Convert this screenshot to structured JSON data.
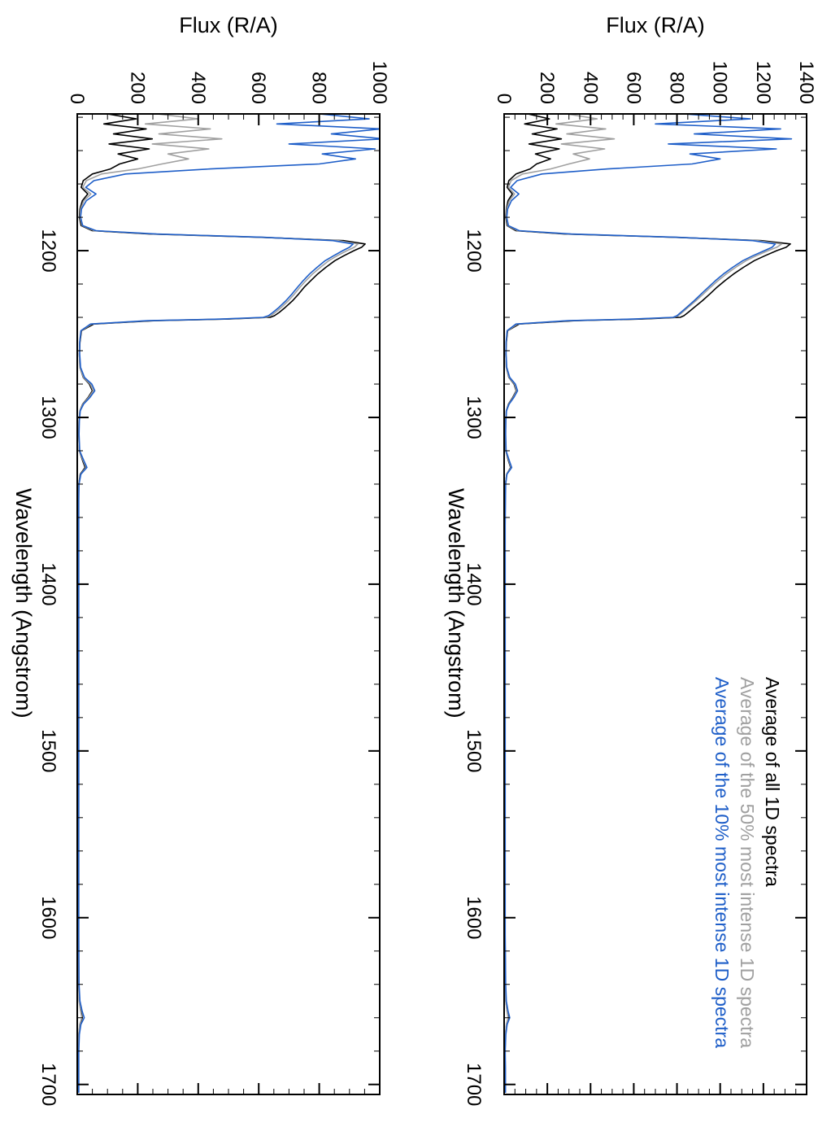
{
  "figure": {
    "flux_axis_title": "Flux (R/A)",
    "wavelength_axis_title": "Wavelength (Angstrom)",
    "background_color": "#ffffff",
    "orientation_note": "figure rotated 90 degrees clockwise on page"
  },
  "legend": {
    "position": "inside-right-panel",
    "items": [
      {
        "label": "Average of all 1D spectra",
        "color": "#000000"
      },
      {
        "label": "Average of the 50% most intense 1D spectra",
        "color": "#a0a0a0"
      },
      {
        "label": "Average of the 10% most intense 1D spectra",
        "color": "#1e5ec8"
      }
    ]
  },
  "chart_data": {
    "type": "line",
    "title": "",
    "xlabel": "Wavelength (Angstrom)",
    "ylabel": "Flux (R/A)",
    "grid": false,
    "wavelength_range": [
      1118,
      1706
    ],
    "wavelength": [
      1118,
      1121,
      1124,
      1127,
      1130,
      1133,
      1136,
      1139,
      1142,
      1145,
      1148,
      1151,
      1154,
      1158,
      1162,
      1166,
      1170,
      1175,
      1180,
      1185,
      1188,
      1190,
      1192,
      1194,
      1196,
      1198,
      1200,
      1203,
      1206,
      1210,
      1214,
      1218,
      1222,
      1226,
      1230,
      1234,
      1237,
      1239,
      1240,
      1241,
      1242,
      1244,
      1248,
      1255,
      1262,
      1270,
      1276,
      1280,
      1284,
      1288,
      1292,
      1296,
      1302,
      1310,
      1320,
      1326,
      1330,
      1334,
      1340,
      1350,
      1365,
      1380,
      1400,
      1430,
      1460,
      1490,
      1520,
      1550,
      1580,
      1610,
      1640,
      1650,
      1656,
      1660,
      1664,
      1670,
      1680,
      1690,
      1700,
      1705
    ],
    "panels": [
      {
        "id": "left-panel",
        "position": "left",
        "flux_range": [
          0,
          1000
        ],
        "flux_ticks": [
          0,
          200,
          400,
          600,
          800,
          1000
        ],
        "flux_minor_step": 50,
        "wavelength_ticks": [
          1200,
          1300,
          1400,
          1500,
          1600,
          1700
        ],
        "legend_visible": false,
        "series": [
          {
            "id": "avg-all",
            "name": "Average of all 1D spectra",
            "color": "#000000",
            "flux": [
              100,
              195,
              88,
              228,
              120,
              248,
              105,
              238,
              135,
              200,
              140,
              110,
              50,
              20,
              13,
              35,
              17,
              9,
              7,
              13,
              50,
              240,
              600,
              880,
              952,
              940,
              915,
              882,
              852,
              822,
              795,
              772,
              750,
              732,
              712,
              688,
              668,
              652,
              638,
              500,
              258,
              55,
              14,
              9,
              7,
              9,
              20,
              40,
              50,
              36,
              18,
              9,
              6,
              5,
              7,
              18,
              26,
              10,
              5,
              4,
              4,
              4,
              4,
              4,
              4,
              4,
              4,
              4,
              4,
              4,
              5,
              7,
              12,
              17,
              9,
              5,
              4,
              4,
              4,
              4
            ]
          },
          {
            "id": "avg-50pct",
            "name": "Average of the 50% most intense 1D spectra",
            "color": "#a0a0a0",
            "flux": [
              265,
              400,
              225,
              440,
              270,
              478,
              248,
              435,
              300,
              368,
              280,
              200,
              80,
              30,
              18,
              45,
              22,
              11,
              9,
              16,
              56,
              252,
              608,
              862,
              928,
              916,
              892,
              860,
              832,
              804,
              778,
              756,
              736,
              718,
              698,
              675,
              655,
              640,
              625,
              485,
              242,
              48,
              13,
              8,
              7,
              9,
              21,
              43,
              53,
              38,
              19,
              9,
              6,
              5,
              7,
              20,
              29,
              11,
              5,
              4,
              4,
              4,
              4,
              4,
              4,
              4,
              4,
              4,
              4,
              4,
              5,
              6,
              11,
              15,
              8,
              5,
              4,
              4,
              4,
              4
            ]
          },
          {
            "id": "avg-10pct",
            "name": "Average of the 10% most intense 1D spectra",
            "color": "#1e5ec8",
            "flux": [
              800,
              965,
              660,
              1005,
              840,
              1015,
              700,
              985,
              810,
              920,
              800,
              440,
              160,
              55,
              28,
              62,
              30,
              14,
              11,
              18,
              62,
              262,
              615,
              845,
              912,
              900,
              878,
              848,
              820,
              793,
              768,
              747,
              728,
              710,
              690,
              667,
              647,
              632,
              615,
              478,
              232,
              44,
              12,
              8,
              8,
              11,
              24,
              48,
              58,
              42,
              21,
              10,
              7,
              6,
              8,
              22,
              32,
              12,
              6,
              5,
              5,
              5,
              5,
              5,
              5,
              5,
              5,
              5,
              5,
              5,
              6,
              9,
              16,
              23,
              12,
              7,
              5,
              5,
              5,
              5
            ]
          }
        ]
      },
      {
        "id": "right-panel",
        "position": "right",
        "flux_range": [
          0,
          1400
        ],
        "flux_ticks": [
          0,
          200,
          400,
          600,
          800,
          1000,
          1200,
          1400
        ],
        "flux_minor_step": 50,
        "wavelength_ticks": [
          1200,
          1300,
          1400,
          1500,
          1600,
          1700
        ],
        "legend_visible": true,
        "series": [
          {
            "id": "avg-all",
            "name": "Average of all 1D spectra",
            "color": "#000000",
            "flux": [
              110,
              210,
              95,
              245,
              130,
              265,
              115,
              255,
              145,
              215,
              150,
              120,
              55,
              22,
              14,
              38,
              18,
              10,
              8,
              14,
              55,
              280,
              780,
              1190,
              1325,
              1305,
              1262,
              1208,
              1158,
              1108,
              1062,
              1022,
              985,
              952,
              918,
              880,
              852,
              832,
              815,
              640,
              330,
              70,
              16,
              10,
              8,
              10,
              22,
              46,
              56,
              40,
              20,
              10,
              7,
              6,
              8,
              20,
              30,
              12,
              6,
              5,
              4,
              4,
              4,
              4,
              4,
              4,
              4,
              4,
              4,
              4,
              6,
              8,
              14,
              20,
              11,
              6,
              4,
              5,
              5,
              5
            ]
          },
          {
            "id": "avg-50pct",
            "name": "Average of the 50% most intense 1D spectra",
            "color": "#a0a0a0",
            "flux": [
              290,
              430,
              240,
              470,
              290,
              510,
              265,
              465,
              320,
              395,
              300,
              215,
              85,
              32,
              20,
              48,
              24,
              12,
              10,
              17,
              62,
              295,
              790,
              1170,
              1285,
              1262,
              1222,
              1168,
              1120,
              1072,
              1028,
              990,
              955,
              922,
              888,
              852,
              825,
              806,
              788,
              610,
              305,
              62,
              15,
              9,
              8,
              10,
              23,
              48,
              58,
              42,
              21,
              10,
              7,
              6,
              8,
              22,
              32,
              12,
              6,
              5,
              4,
              4,
              4,
              4,
              4,
              4,
              4,
              4,
              4,
              4,
              5,
              7,
              13,
              18,
              10,
              6,
              4,
              5,
              5,
              5
            ]
          },
          {
            "id": "avg-10pct",
            "name": "Average of the 10% most intense 1D spectra",
            "color": "#1e5ec8",
            "flux": [
              830,
              1140,
              700,
              1280,
              880,
              1330,
              760,
              1260,
              860,
              1000,
              870,
              480,
              175,
              60,
              30,
              68,
              34,
              16,
              12,
              20,
              70,
              310,
              800,
              1150,
              1255,
              1240,
              1205,
              1152,
              1105,
              1058,
              1015,
              978,
              945,
              912,
              880,
              845,
              818,
              800,
              782,
              600,
              295,
              55,
              14,
              9,
              9,
              12,
              26,
              52,
              62,
              45,
              23,
              11,
              8,
              7,
              9,
              24,
              35,
              13,
              7,
              6,
              5,
              5,
              5,
              5,
              5,
              5,
              5,
              5,
              5,
              5,
              7,
              10,
              18,
              26,
              14,
              8,
              5,
              6,
              6,
              6
            ]
          }
        ]
      }
    ]
  }
}
